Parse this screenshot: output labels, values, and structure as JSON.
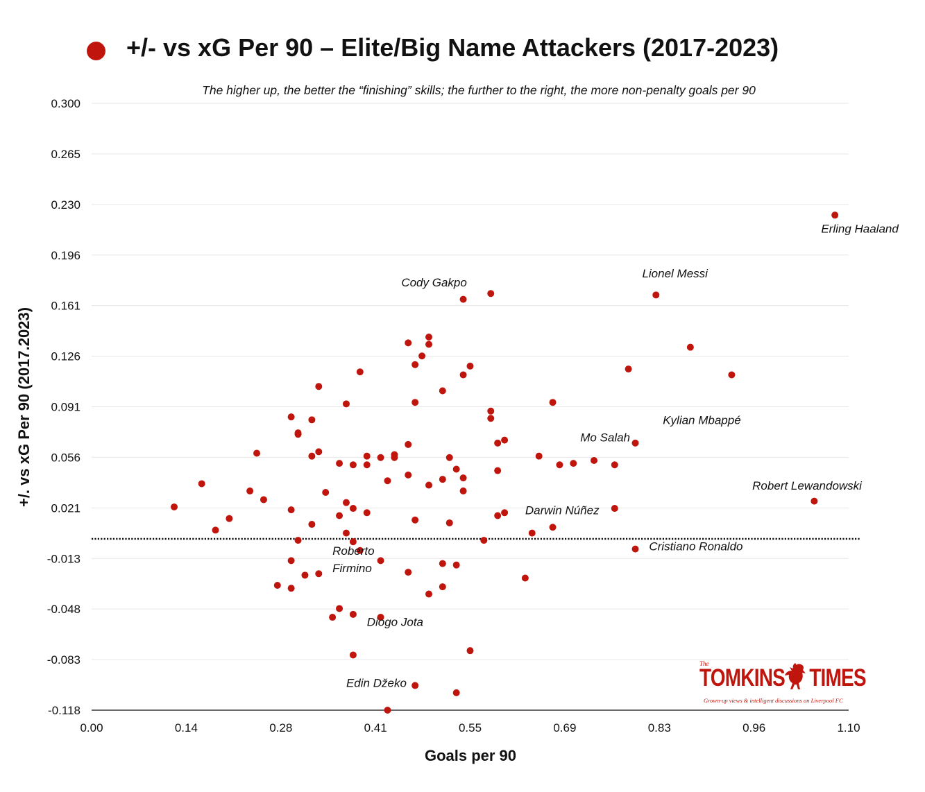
{
  "title": "+/- vs xG Per 90 – Elite/Big Name Attackers (2017-2023)",
  "subtitle": "The higher up, the better the “finishing” skills; the further to the right, the more non-penalty goals per 90",
  "brand": {
    "small": "The",
    "name_left": "TOMKINS",
    "name_right": "TIMES",
    "tagline": "Grown-up views & intelligent discussions on Liverpool FC",
    "logo_icon": "liverbird-icon"
  },
  "colors": {
    "marker": "#c0150d",
    "grid": "#e6e6e6",
    "reference_line": "#111111"
  },
  "chart_data": {
    "type": "scatter",
    "title": "+/- vs xG Per 90 – Elite/Big Name Attackers (2017-2023)",
    "xlabel": "Goals per 90",
    "ylabel": "+/. vs xG Per 90 (2017.2023)",
    "xlim": [
      0.0,
      1.1
    ],
    "ylim": [
      -0.118,
      0.3
    ],
    "xticks": [
      "0.00",
      "0.14",
      "0.28",
      "0.41",
      "0.55",
      "0.69",
      "0.83",
      "0.96",
      "1.10"
    ],
    "yticks": [
      "0.300",
      "0.265",
      "0.230",
      "0.196",
      "0.161",
      "0.126",
      "0.091",
      "0.056",
      "0.021",
      "-0.013",
      "-0.048",
      "-0.083",
      "-0.118"
    ],
    "grid": true,
    "reference_line_y": 0.0,
    "points": [
      {
        "x": 1.08,
        "y": 0.223
      },
      {
        "x": 1.05,
        "y": 0.026
      },
      {
        "x": 0.82,
        "y": 0.168
      },
      {
        "x": 0.87,
        "y": 0.132
      },
      {
        "x": 0.93,
        "y": 0.113
      },
      {
        "x": 0.78,
        "y": 0.117
      },
      {
        "x": 0.79,
        "y": 0.066
      },
      {
        "x": 0.79,
        "y": -0.007
      },
      {
        "x": 0.76,
        "y": 0.051
      },
      {
        "x": 0.76,
        "y": 0.021
      },
      {
        "x": 0.73,
        "y": 0.054
      },
      {
        "x": 0.7,
        "y": 0.052
      },
      {
        "x": 0.68,
        "y": 0.051
      },
      {
        "x": 0.67,
        "y": 0.094
      },
      {
        "x": 0.67,
        "y": 0.008
      },
      {
        "x": 0.65,
        "y": 0.057
      },
      {
        "x": 0.64,
        "y": 0.004
      },
      {
        "x": 0.63,
        "y": -0.027
      },
      {
        "x": 0.58,
        "y": 0.169
      },
      {
        "x": 0.58,
        "y": 0.088
      },
      {
        "x": 0.58,
        "y": 0.083
      },
      {
        "x": 0.59,
        "y": 0.066
      },
      {
        "x": 0.6,
        "y": 0.068
      },
      {
        "x": 0.59,
        "y": 0.047
      },
      {
        "x": 0.59,
        "y": 0.016
      },
      {
        "x": 0.6,
        "y": 0.018
      },
      {
        "x": 0.57,
        "y": -0.001
      },
      {
        "x": 0.54,
        "y": 0.165
      },
      {
        "x": 0.55,
        "y": 0.119
      },
      {
        "x": 0.54,
        "y": 0.113
      },
      {
        "x": 0.51,
        "y": 0.102
      },
      {
        "x": 0.49,
        "y": 0.139
      },
      {
        "x": 0.49,
        "y": 0.134
      },
      {
        "x": 0.48,
        "y": 0.126
      },
      {
        "x": 0.46,
        "y": 0.135
      },
      {
        "x": 0.47,
        "y": 0.12
      },
      {
        "x": 0.47,
        "y": 0.094
      },
      {
        "x": 0.46,
        "y": 0.065
      },
      {
        "x": 0.46,
        "y": 0.044
      },
      {
        "x": 0.49,
        "y": 0.037
      },
      {
        "x": 0.51,
        "y": 0.041
      },
      {
        "x": 0.52,
        "y": 0.056
      },
      {
        "x": 0.53,
        "y": 0.048
      },
      {
        "x": 0.54,
        "y": 0.042
      },
      {
        "x": 0.54,
        "y": 0.033
      },
      {
        "x": 0.52,
        "y": 0.011
      },
      {
        "x": 0.47,
        "y": 0.013
      },
      {
        "x": 0.44,
        "y": 0.058
      },
      {
        "x": 0.44,
        "y": 0.056
      },
      {
        "x": 0.42,
        "y": 0.056
      },
      {
        "x": 0.43,
        "y": 0.04
      },
      {
        "x": 0.4,
        "y": 0.057
      },
      {
        "x": 0.4,
        "y": 0.051
      },
      {
        "x": 0.4,
        "y": 0.018
      },
      {
        "x": 0.39,
        "y": 0.115
      },
      {
        "x": 0.37,
        "y": 0.093
      },
      {
        "x": 0.38,
        "y": 0.051
      },
      {
        "x": 0.36,
        "y": 0.052
      },
      {
        "x": 0.37,
        "y": 0.025
      },
      {
        "x": 0.38,
        "y": 0.021
      },
      {
        "x": 0.36,
        "y": 0.016
      },
      {
        "x": 0.37,
        "y": 0.004
      },
      {
        "x": 0.38,
        "y": -0.002
      },
      {
        "x": 0.39,
        "y": -0.008
      },
      {
        "x": 0.42,
        "y": -0.015
      },
      {
        "x": 0.46,
        "y": -0.023
      },
      {
        "x": 0.51,
        "y": -0.017
      },
      {
        "x": 0.53,
        "y": -0.018
      },
      {
        "x": 0.51,
        "y": -0.033
      },
      {
        "x": 0.49,
        "y": -0.038
      },
      {
        "x": 0.33,
        "y": 0.105
      },
      {
        "x": 0.32,
        "y": 0.082
      },
      {
        "x": 0.3,
        "y": 0.073
      },
      {
        "x": 0.3,
        "y": 0.072
      },
      {
        "x": 0.33,
        "y": 0.06
      },
      {
        "x": 0.32,
        "y": 0.057
      },
      {
        "x": 0.34,
        "y": 0.032
      },
      {
        "x": 0.29,
        "y": 0.084
      },
      {
        "x": 0.29,
        "y": 0.02
      },
      {
        "x": 0.32,
        "y": 0.01
      },
      {
        "x": 0.3,
        "y": -0.001
      },
      {
        "x": 0.29,
        "y": -0.015
      },
      {
        "x": 0.31,
        "y": -0.025
      },
      {
        "x": 0.33,
        "y": -0.024
      },
      {
        "x": 0.27,
        "y": -0.032
      },
      {
        "x": 0.29,
        "y": -0.034
      },
      {
        "x": 0.24,
        "y": 0.059
      },
      {
        "x": 0.23,
        "y": 0.033
      },
      {
        "x": 0.25,
        "y": 0.027
      },
      {
        "x": 0.16,
        "y": 0.038
      },
      {
        "x": 0.12,
        "y": 0.022
      },
      {
        "x": 0.2,
        "y": 0.014
      },
      {
        "x": 0.18,
        "y": 0.006
      },
      {
        "x": 0.36,
        "y": -0.048
      },
      {
        "x": 0.35,
        "y": -0.054
      },
      {
        "x": 0.38,
        "y": -0.052
      },
      {
        "x": 0.42,
        "y": -0.054
      },
      {
        "x": 0.38,
        "y": -0.08
      },
      {
        "x": 0.55,
        "y": -0.077
      },
      {
        "x": 0.47,
        "y": -0.101
      },
      {
        "x": 0.53,
        "y": -0.106
      },
      {
        "x": 0.43,
        "y": -0.118
      }
    ],
    "annotations": [
      {
        "text": "Erling Haaland",
        "x": 1.06,
        "y": 0.211
      },
      {
        "text": "Lionel Messi",
        "x": 0.8,
        "y": 0.18
      },
      {
        "text": "Cody Gakpo",
        "x": 0.45,
        "y": 0.174
      },
      {
        "text": "Kylian Mbappé",
        "x": 0.83,
        "y": 0.079
      },
      {
        "text": "Mo Salah",
        "x": 0.71,
        "y": 0.067
      },
      {
        "text": "Robert Lewandowski",
        "x": 0.96,
        "y": 0.034
      },
      {
        "text": "Darwin Núñez",
        "x": 0.63,
        "y": 0.017
      },
      {
        "text": "Cristiano Ronaldo",
        "x": 0.81,
        "y": -0.008
      },
      {
        "text": "Roberto",
        "x": 0.35,
        "y": -0.011
      },
      {
        "text": "Firmino",
        "x": 0.35,
        "y": -0.023
      },
      {
        "text": "Diogo Jota",
        "x": 0.4,
        "y": -0.06
      },
      {
        "text": "Edin Džeko",
        "x": 0.37,
        "y": -0.102
      }
    ]
  }
}
